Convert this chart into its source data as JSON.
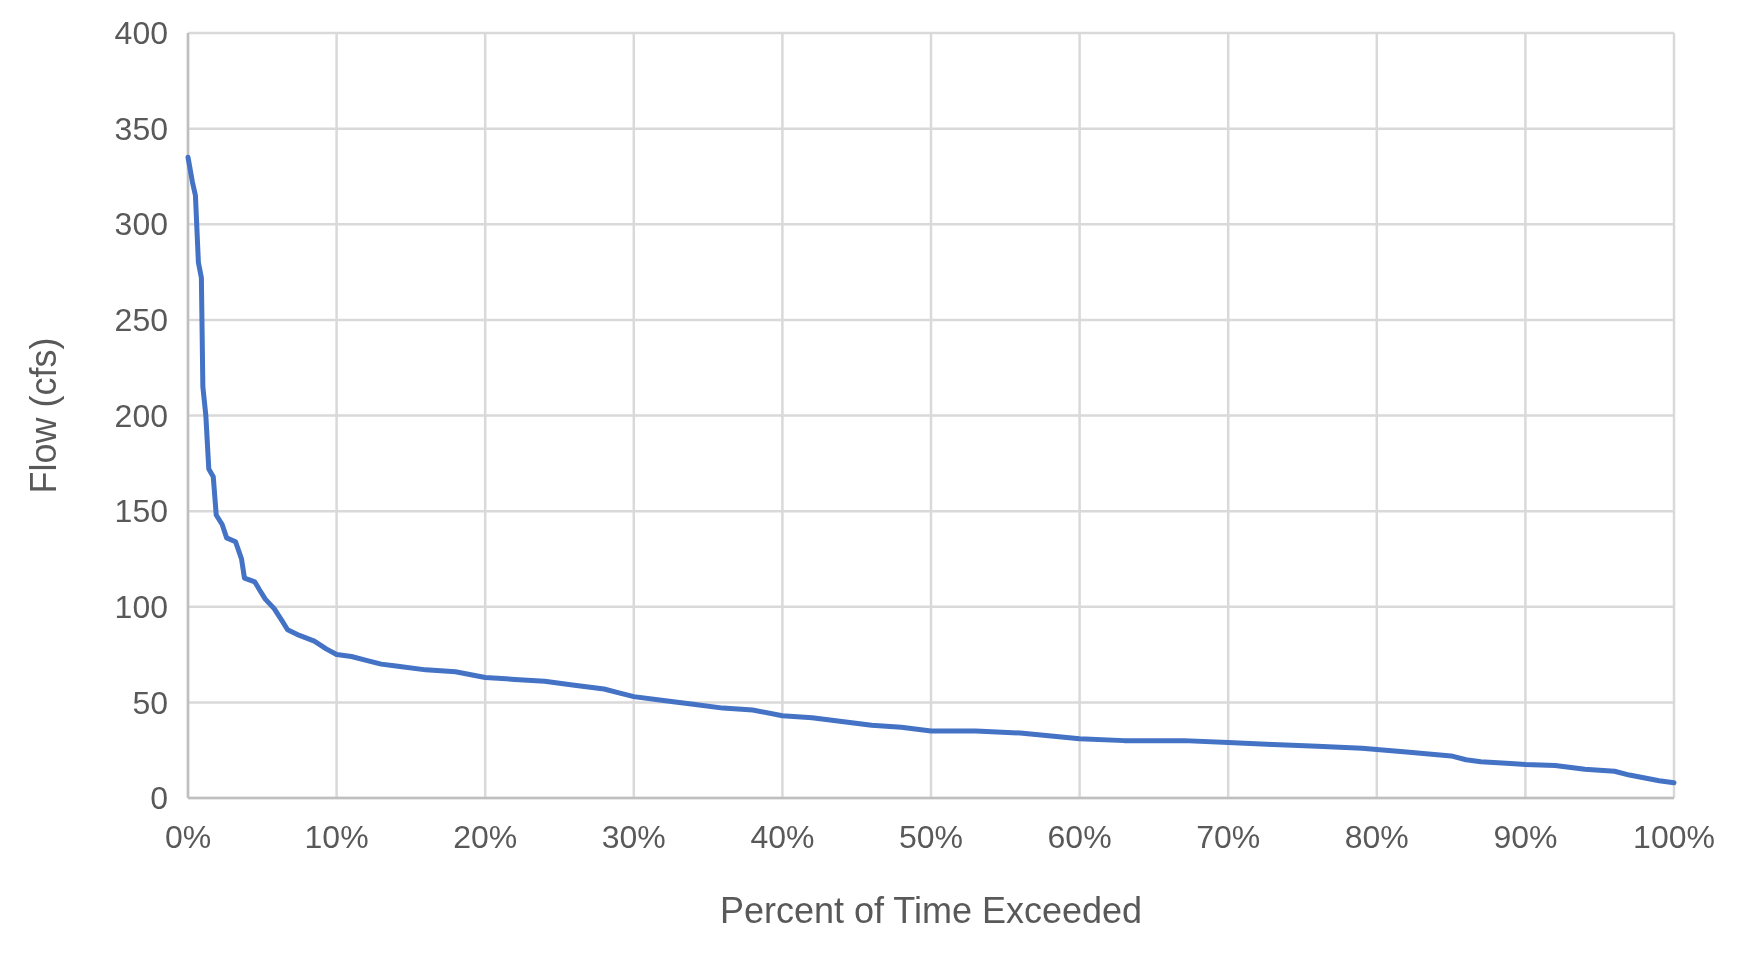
{
  "chart_data": {
    "type": "line",
    "xlabel": "Percent of Time Exceeded",
    "ylabel": "Flow (cfs)",
    "xlim": [
      0,
      100
    ],
    "xticks": [
      {
        "value": 0,
        "label": "0%"
      },
      {
        "value": 10,
        "label": "10%"
      },
      {
        "value": 20,
        "label": "20%"
      },
      {
        "value": 30,
        "label": "30%"
      },
      {
        "value": 40,
        "label": "40%"
      },
      {
        "value": 50,
        "label": "50%"
      },
      {
        "value": 60,
        "label": "60%"
      },
      {
        "value": 70,
        "label": "70%"
      },
      {
        "value": 80,
        "label": "80%"
      },
      {
        "value": 90,
        "label": "90%"
      },
      {
        "value": 100,
        "label": "100%"
      }
    ],
    "ylim": [
      0,
      400
    ],
    "yticks": [
      0,
      50,
      100,
      150,
      200,
      250,
      300,
      350,
      400
    ],
    "grid": true,
    "marker": "none",
    "line_style": "solid",
    "x": [
      0,
      0.3,
      0.5,
      0.7,
      0.9,
      1.0,
      1.2,
      1.4,
      1.7,
      1.9,
      2.3,
      2.6,
      3.2,
      3.6,
      3.8,
      4.5,
      4.8,
      5.2,
      5.8,
      6.3,
      6.7,
      7.5,
      8.5,
      9.3,
      10,
      11,
      12,
      13,
      14,
      16,
      18,
      20,
      22,
      24,
      26,
      28,
      29,
      30,
      32,
      34,
      36,
      38,
      40,
      42,
      44,
      46,
      48,
      50,
      53,
      56,
      60,
      63,
      67,
      70,
      73,
      76,
      79,
      82,
      85,
      86,
      87,
      89,
      90,
      92,
      94,
      96,
      97,
      99,
      100
    ],
    "series": [
      {
        "color": "#4472c4",
        "values": [
          335,
          322,
          315,
          280,
          272,
          215,
          200,
          172,
          168,
          148,
          143,
          136,
          134,
          125,
          115,
          113,
          109,
          104,
          99,
          93,
          88,
          85,
          82,
          78,
          75,
          74,
          72,
          70,
          69,
          67,
          66,
          63,
          62,
          61,
          59,
          57,
          55,
          53,
          51,
          49,
          47,
          46,
          43,
          42,
          40,
          38,
          37,
          35,
          35,
          34,
          31,
          30,
          30,
          29,
          28,
          27,
          26,
          24,
          22,
          20,
          19,
          18,
          17.5,
          17,
          15,
          14,
          12,
          9,
          8
        ]
      }
    ]
  }
}
